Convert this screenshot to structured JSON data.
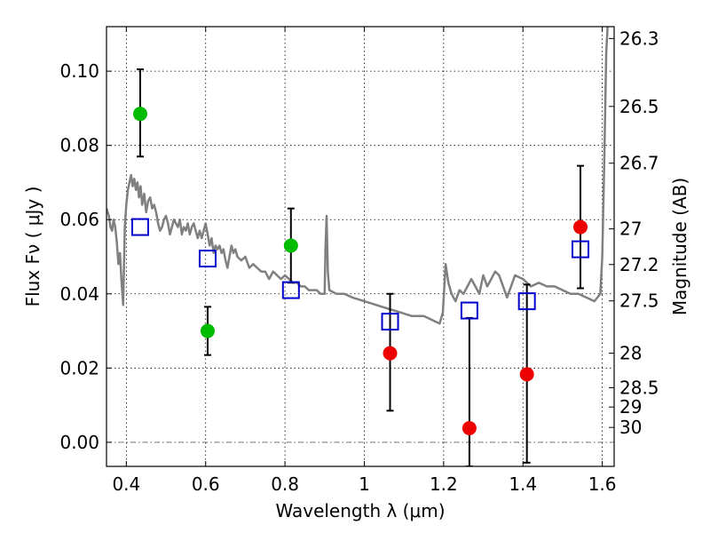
{
  "chart_data": {
    "type": "scatter",
    "title": "",
    "xlabel": "Wavelength  λ (μm)",
    "ylabel": "Flux  Fν ( μJy )",
    "y2label": "Magnitude (AB)",
    "xlim": [
      0.35,
      1.63
    ],
    "ylim": [
      -0.0065,
      0.112
    ],
    "grid": true,
    "xticks": [
      {
        "value": 0.4,
        "label": "0.4"
      },
      {
        "value": 0.6,
        "label": "0.6"
      },
      {
        "value": 0.8,
        "label": "0.8"
      },
      {
        "value": 1.0,
        "label": "1"
      },
      {
        "value": 1.2,
        "label": "1.2"
      },
      {
        "value": 1.4,
        "label": "1.4"
      },
      {
        "value": 1.6,
        "label": "1.6"
      }
    ],
    "yticks": [
      {
        "value": 0.0,
        "label": "0.00"
      },
      {
        "value": 0.02,
        "label": "0.02"
      },
      {
        "value": 0.04,
        "label": "0.04"
      },
      {
        "value": 0.06,
        "label": "0.06"
      },
      {
        "value": 0.08,
        "label": "0.08"
      },
      {
        "value": 0.1,
        "label": "0.10"
      }
    ],
    "y2ticks": [
      {
        "flux": 0.1088,
        "label": "26.3"
      },
      {
        "flux": 0.0905,
        "label": "26.5"
      },
      {
        "flux": 0.0752,
        "label": "26.7"
      },
      {
        "flux": 0.0575,
        "label": "27"
      },
      {
        "flux": 0.0479,
        "label": "27.2"
      },
      {
        "flux": 0.0381,
        "label": "27.5"
      },
      {
        "flux": 0.024,
        "label": "28"
      },
      {
        "flux": 0.0147,
        "label": "28.5"
      },
      {
        "flux": 0.0095,
        "label": "29"
      },
      {
        "flux": 0.004,
        "label": "30"
      }
    ],
    "series": [
      {
        "kind": "line",
        "color": "#808080",
        "points": [
          [
            0.35,
            0.063
          ],
          [
            0.356,
            0.061
          ],
          [
            0.36,
            0.058
          ],
          [
            0.364,
            0.057
          ],
          [
            0.368,
            0.06
          ],
          [
            0.372,
            0.058
          ],
          [
            0.376,
            0.054
          ],
          [
            0.38,
            0.048
          ],
          [
            0.384,
            0.051
          ],
          [
            0.388,
            0.043
          ],
          [
            0.392,
            0.037
          ],
          [
            0.396,
            0.058
          ],
          [
            0.4,
            0.064
          ],
          [
            0.404,
            0.068
          ],
          [
            0.408,
            0.07
          ],
          [
            0.412,
            0.072
          ],
          [
            0.416,
            0.069
          ],
          [
            0.42,
            0.071
          ],
          [
            0.424,
            0.068
          ],
          [
            0.428,
            0.07
          ],
          [
            0.432,
            0.066
          ],
          [
            0.436,
            0.069
          ],
          [
            0.44,
            0.064
          ],
          [
            0.445,
            0.067
          ],
          [
            0.45,
            0.062
          ],
          [
            0.455,
            0.065
          ],
          [
            0.46,
            0.066
          ],
          [
            0.465,
            0.063
          ],
          [
            0.47,
            0.064
          ],
          [
            0.475,
            0.062
          ],
          [
            0.48,
            0.059
          ],
          [
            0.485,
            0.057
          ],
          [
            0.49,
            0.058
          ],
          [
            0.495,
            0.06
          ],
          [
            0.5,
            0.061
          ],
          [
            0.505,
            0.059
          ],
          [
            0.51,
            0.056
          ],
          [
            0.515,
            0.058
          ],
          [
            0.52,
            0.06
          ],
          [
            0.525,
            0.059
          ],
          [
            0.53,
            0.058
          ],
          [
            0.535,
            0.06
          ],
          [
            0.54,
            0.056
          ],
          [
            0.545,
            0.058
          ],
          [
            0.55,
            0.057
          ],
          [
            0.555,
            0.059
          ],
          [
            0.56,
            0.056
          ],
          [
            0.565,
            0.058
          ],
          [
            0.57,
            0.059
          ],
          [
            0.575,
            0.057
          ],
          [
            0.58,
            0.055
          ],
          [
            0.585,
            0.057
          ],
          [
            0.59,
            0.055
          ],
          [
            0.595,
            0.057
          ],
          [
            0.6,
            0.059
          ],
          [
            0.605,
            0.056
          ],
          [
            0.61,
            0.053
          ],
          [
            0.615,
            0.055
          ],
          [
            0.62,
            0.051
          ],
          [
            0.625,
            0.053
          ],
          [
            0.63,
            0.052
          ],
          [
            0.635,
            0.053
          ],
          [
            0.64,
            0.051
          ],
          [
            0.645,
            0.052
          ],
          [
            0.65,
            0.049
          ],
          [
            0.655,
            0.047
          ],
          [
            0.66,
            0.05
          ],
          [
            0.665,
            0.053
          ],
          [
            0.67,
            0.051
          ],
          [
            0.675,
            0.052
          ],
          [
            0.68,
            0.05
          ],
          [
            0.69,
            0.049
          ],
          [
            0.7,
            0.05
          ],
          [
            0.71,
            0.047
          ],
          [
            0.72,
            0.048
          ],
          [
            0.73,
            0.047
          ],
          [
            0.74,
            0.046
          ],
          [
            0.75,
            0.046
          ],
          [
            0.76,
            0.044
          ],
          [
            0.77,
            0.046
          ],
          [
            0.78,
            0.045
          ],
          [
            0.79,
            0.044
          ],
          [
            0.8,
            0.045
          ],
          [
            0.81,
            0.044
          ],
          [
            0.82,
            0.043
          ],
          [
            0.83,
            0.043
          ],
          [
            0.84,
            0.042
          ],
          [
            0.85,
            0.042
          ],
          [
            0.86,
            0.041
          ],
          [
            0.87,
            0.041
          ],
          [
            0.88,
            0.041
          ],
          [
            0.89,
            0.04
          ],
          [
            0.9,
            0.04
          ],
          [
            0.902,
            0.052
          ],
          [
            0.905,
            0.061
          ],
          [
            0.908,
            0.046
          ],
          [
            0.912,
            0.041
          ],
          [
            0.93,
            0.04
          ],
          [
            0.95,
            0.04
          ],
          [
            0.97,
            0.039
          ],
          [
            1.0,
            0.038
          ],
          [
            1.03,
            0.037
          ],
          [
            1.06,
            0.036
          ],
          [
            1.09,
            0.035
          ],
          [
            1.12,
            0.034
          ],
          [
            1.15,
            0.034
          ],
          [
            1.17,
            0.033
          ],
          [
            1.19,
            0.032
          ],
          [
            1.198,
            0.035
          ],
          [
            1.205,
            0.048
          ],
          [
            1.212,
            0.043
          ],
          [
            1.22,
            0.04
          ],
          [
            1.23,
            0.038
          ],
          [
            1.24,
            0.041
          ],
          [
            1.25,
            0.04
          ],
          [
            1.26,
            0.042
          ],
          [
            1.27,
            0.044
          ],
          [
            1.28,
            0.042
          ],
          [
            1.29,
            0.04
          ],
          [
            1.3,
            0.045
          ],
          [
            1.31,
            0.042
          ],
          [
            1.32,
            0.044
          ],
          [
            1.33,
            0.046
          ],
          [
            1.34,
            0.045
          ],
          [
            1.35,
            0.042
          ],
          [
            1.36,
            0.039
          ],
          [
            1.37,
            0.042
          ],
          [
            1.38,
            0.045
          ],
          [
            1.4,
            0.044
          ],
          [
            1.42,
            0.042
          ],
          [
            1.44,
            0.043
          ],
          [
            1.46,
            0.042
          ],
          [
            1.48,
            0.042
          ],
          [
            1.5,
            0.041
          ],
          [
            1.52,
            0.04
          ],
          [
            1.54,
            0.04
          ],
          [
            1.56,
            0.039
          ],
          [
            1.58,
            0.038
          ],
          [
            1.595,
            0.04
          ],
          [
            1.6,
            0.05
          ],
          [
            1.605,
            0.075
          ],
          [
            1.61,
            0.105
          ],
          [
            1.615,
            0.115
          ]
        ]
      },
      {
        "kind": "marker",
        "marker": "open-square",
        "color": "#0000cc",
        "points": [
          [
            0.435,
            0.058
          ],
          [
            0.605,
            0.0495
          ],
          [
            0.815,
            0.041
          ],
          [
            1.065,
            0.0325
          ],
          [
            1.265,
            0.0355
          ],
          [
            1.41,
            0.038
          ],
          [
            1.545,
            0.052
          ]
        ]
      },
      {
        "kind": "marker",
        "marker": "filled-circle",
        "color": "#00bb00",
        "points": [
          {
            "x": 0.435,
            "y": 0.0885,
            "lo": 0.077,
            "hi": 0.1005
          },
          {
            "x": 0.605,
            "y": 0.03,
            "lo": 0.0235,
            "hi": 0.0365
          },
          {
            "x": 0.815,
            "y": 0.053,
            "lo": 0.043,
            "hi": 0.063
          }
        ]
      },
      {
        "kind": "marker",
        "marker": "filled-circle",
        "color": "#ee0000",
        "points": [
          {
            "x": 1.065,
            "y": 0.024,
            "lo": 0.0085,
            "hi": 0.04
          },
          {
            "x": 1.265,
            "y": 0.0038,
            "lo": -0.0065,
            "hi": 0.0335
          },
          {
            "x": 1.41,
            "y": 0.0183,
            "lo": -0.0055,
            "hi": 0.0425
          },
          {
            "x": 1.545,
            "y": 0.058,
            "lo": 0.0415,
            "hi": 0.0745
          }
        ]
      }
    ]
  }
}
